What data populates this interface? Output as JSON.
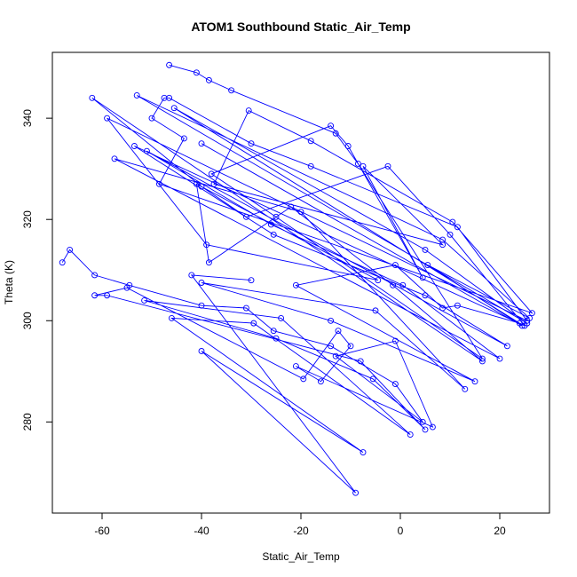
{
  "chart_data": {
    "type": "line",
    "title": "ATOM1 Southbound Static_Air_Temp",
    "xlabel": "Static_Air_Temp",
    "ylabel": "Theta (K)",
    "xlim": [
      -70,
      30
    ],
    "ylim": [
      262,
      353
    ],
    "xticks": [
      -60,
      -40,
      -20,
      0,
      20
    ],
    "yticks": [
      280,
      300,
      320,
      340
    ],
    "grid": false,
    "line_color": "#0000ff",
    "marker": "open-circle",
    "series": [
      {
        "points": [
          [
            -68,
            311.5
          ],
          [
            -66.5,
            314
          ],
          [
            -61.5,
            309
          ],
          [
            -54.5,
            307
          ],
          [
            -40,
            303
          ],
          [
            -31,
            302.5
          ],
          [
            -25.5,
            298
          ],
          [
            -14,
            295
          ],
          [
            -1,
            287.5
          ],
          [
            4.5,
            280
          ],
          [
            -13,
            293
          ],
          [
            -1,
            296
          ],
          [
            6.5,
            279
          ],
          [
            -21,
            291
          ],
          [
            -16,
            288
          ],
          [
            -10,
            295
          ],
          [
            -12.5,
            298
          ],
          [
            -19.5,
            288.5
          ],
          [
            -55,
            306.5
          ],
          [
            -61.5,
            305
          ],
          [
            -59,
            305
          ],
          [
            -8,
            292
          ],
          [
            5,
            278.5
          ],
          [
            -5.5,
            288.5
          ],
          [
            -25,
            296.5
          ],
          [
            -51.5,
            304
          ],
          [
            -24,
            300.5
          ],
          [
            2,
            277.5
          ],
          [
            -29.5,
            299.5
          ],
          [
            -46,
            300.5
          ],
          [
            -7.5,
            274
          ],
          [
            -40,
            294
          ],
          [
            -9,
            266
          ],
          [
            -42,
            309
          ],
          [
            -30,
            308
          ]
        ]
      },
      {
        "points": [
          [
            -46.5,
            350.5
          ],
          [
            -41,
            349
          ],
          [
            -38.5,
            347.5
          ],
          [
            -34,
            345.5
          ],
          [
            -13,
            337
          ],
          [
            -8.5,
            331
          ],
          [
            16.5,
            292.5
          ],
          [
            -25,
            320.5
          ],
          [
            -38,
            329
          ],
          [
            -14,
            338.5
          ],
          [
            -10.5,
            334.5
          ],
          [
            4.5,
            308.5
          ],
          [
            -7.5,
            330.5
          ],
          [
            8.5,
            315
          ],
          [
            -37.5,
            327
          ],
          [
            -30.5,
            341.5
          ],
          [
            -18,
            335.5
          ],
          [
            10.5,
            319.5
          ],
          [
            26.5,
            301.5
          ],
          [
            -48.5,
            327
          ],
          [
            -43.5,
            336
          ],
          [
            -50,
            340
          ],
          [
            -47.5,
            344
          ],
          [
            -46.5,
            344
          ],
          [
            -30,
            335
          ],
          [
            -18,
            330.5
          ],
          [
            11.5,
            318.5
          ],
          [
            25.5,
            300
          ],
          [
            -59,
            340
          ],
          [
            -39,
            315
          ],
          [
            -4.5,
            308
          ],
          [
            -41,
            327
          ],
          [
            -38.5,
            311.5
          ],
          [
            -22,
            322.5
          ],
          [
            -1.5,
            307
          ],
          [
            16.5,
            292
          ],
          [
            -62,
            344
          ],
          [
            -40,
            326.5
          ],
          [
            -31,
            320.5
          ],
          [
            -2.5,
            330.5
          ],
          [
            10,
            317
          ],
          [
            25,
            299
          ],
          [
            -53.5,
            334.5
          ],
          [
            -25.5,
            317
          ],
          [
            5,
            305
          ],
          [
            21.5,
            295
          ],
          [
            -51,
            333.5
          ],
          [
            -26,
            319
          ],
          [
            0.5,
            307
          ],
          [
            20,
            292.5
          ],
          [
            -57.5,
            332
          ],
          [
            -20,
            321.5
          ],
          [
            13,
            286.5
          ],
          [
            -5,
            302
          ],
          [
            -40,
            307.5
          ],
          [
            -14,
            300
          ],
          [
            15,
            288
          ],
          [
            -21,
            307
          ],
          [
            -1,
            311
          ],
          [
            8.5,
            302.5
          ],
          [
            11.5,
            303
          ],
          [
            24,
            299.5
          ],
          [
            -45.5,
            342
          ],
          [
            5,
            314
          ],
          [
            25.5,
            299.5
          ],
          [
            -53,
            344.5
          ],
          [
            8.5,
            316
          ],
          [
            26,
            300.5
          ],
          [
            5.5,
            311
          ],
          [
            24.5,
            299
          ],
          [
            -40,
            335
          ]
        ]
      }
    ]
  }
}
